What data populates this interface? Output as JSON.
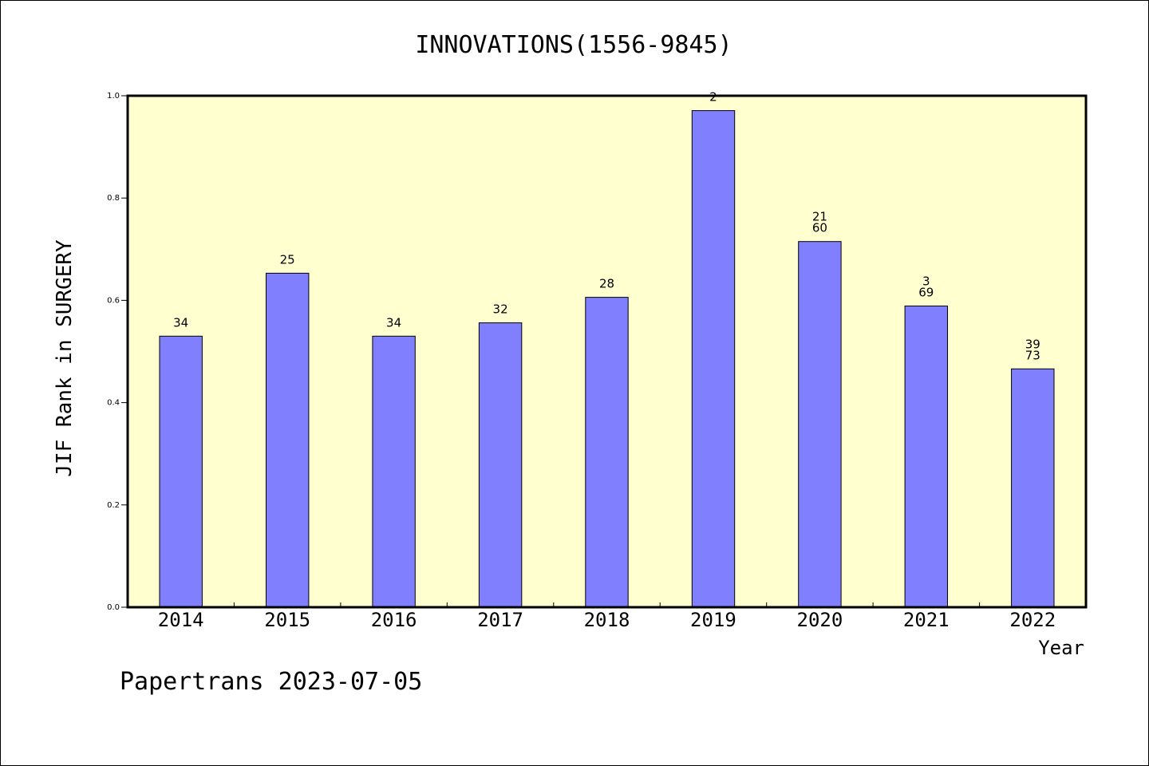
{
  "chart_data": {
    "type": "bar",
    "title": "INNOVATIONS(1556-9845)",
    "xlabel": "Year",
    "ylabel": "JIF Rank in SURGERY",
    "ylim": [
      0,
      1.0
    ],
    "yticks": [
      "0.0",
      "0.2",
      "0.4",
      "0.6",
      "0.8",
      "1.0"
    ],
    "grid": false,
    "categories": [
      "2014",
      "2015",
      "2016",
      "2017",
      "2018",
      "2019",
      "2020",
      "2021",
      "2022"
    ],
    "values": [
      0.53,
      0.653,
      0.53,
      0.556,
      0.606,
      0.971,
      0.715,
      0.589,
      0.466
    ],
    "data_labels": [
      [
        "34"
      ],
      [
        "25"
      ],
      [
        "34"
      ],
      [
        "32"
      ],
      [
        "28"
      ],
      [
        "2"
      ],
      [
        "21",
        "60"
      ],
      [
        "3",
        "69"
      ],
      [
        "39",
        "73"
      ]
    ],
    "colors": {
      "bar": "#8080ff",
      "plot_bg": "#ffffd0",
      "bar_edge": "#000000"
    }
  },
  "footer": "Papertrans 2023-07-05"
}
